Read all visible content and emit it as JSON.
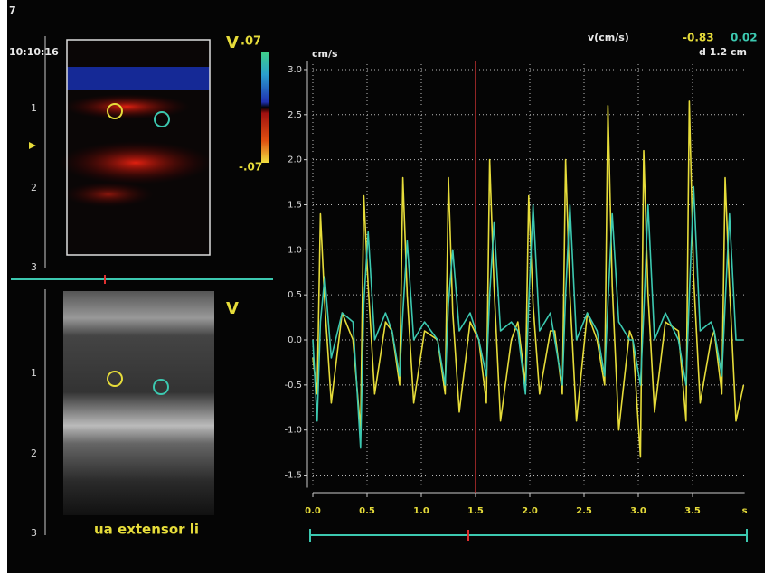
{
  "screen": {
    "frame_number": "7",
    "time": "10:10:16",
    "doppler_label": "V",
    "scale_max": ".07",
    "scale_min": "-.07",
    "bmode_label": "V",
    "caption": "ua extensor li",
    "depth_labels_top": [
      "1",
      "2",
      "3"
    ],
    "depth_labels_bottom": [
      "1",
      "2",
      "3"
    ]
  },
  "readout": {
    "label": "v(cm/s)",
    "value_1": "-0.83",
    "value_2": "0.02",
    "distance": "d 1.2 cm"
  },
  "chart_data": {
    "type": "line",
    "y_label": "cm/s",
    "x_label": "s",
    "x": [
      0.0,
      0.04,
      0.07,
      0.11,
      0.17,
      0.27,
      0.37,
      0.44,
      0.47,
      0.51,
      0.57,
      0.67,
      0.73,
      0.8,
      0.83,
      0.87,
      0.93,
      1.03,
      1.15,
      1.22,
      1.25,
      1.29,
      1.35,
      1.45,
      1.53,
      1.6,
      1.63,
      1.67,
      1.73,
      1.83,
      1.89,
      1.96,
      1.99,
      2.03,
      2.09,
      2.19,
      2.23,
      2.3,
      2.33,
      2.37,
      2.43,
      2.53,
      2.62,
      2.69,
      2.72,
      2.76,
      2.82,
      2.92,
      2.95,
      3.02,
      3.05,
      3.09,
      3.15,
      3.25,
      3.37,
      3.44,
      3.47,
      3.51,
      3.57,
      3.67,
      3.7,
      3.77,
      3.8,
      3.84,
      3.9,
      3.97
    ],
    "series": [
      {
        "color": "#e6dc3a",
        "values": [
          -0.2,
          -0.6,
          1.4,
          0.4,
          -0.7,
          0.3,
          0.0,
          -1.0,
          1.6,
          0.6,
          -0.6,
          0.2,
          0.1,
          -0.5,
          1.8,
          0.5,
          -0.7,
          0.1,
          0.0,
          -0.6,
          1.8,
          0.3,
          -0.8,
          0.2,
          0.0,
          -0.7,
          2.0,
          0.6,
          -0.9,
          0.0,
          0.2,
          -0.5,
          1.6,
          0.4,
          -0.6,
          0.1,
          0.1,
          -0.6,
          2.0,
          0.5,
          -0.9,
          0.3,
          0.0,
          -0.5,
          2.6,
          0.6,
          -1.0,
          0.1,
          0.0,
          -1.3,
          2.1,
          0.5,
          -0.8,
          0.2,
          0.1,
          -0.9,
          2.65,
          0.7,
          -0.7,
          0.0,
          0.1,
          -0.6,
          1.8,
          0.6,
          -0.9,
          -0.5
        ]
      },
      {
        "color": "#3cc8b0",
        "values": [
          0.0,
          -0.9,
          0.2,
          0.7,
          -0.2,
          0.3,
          0.2,
          -1.2,
          0.4,
          1.2,
          0.0,
          0.3,
          0.1,
          -0.4,
          0.3,
          1.1,
          0.0,
          0.2,
          0.0,
          -0.5,
          0.4,
          1.0,
          0.1,
          0.3,
          0.0,
          -0.4,
          0.5,
          1.3,
          0.1,
          0.2,
          0.1,
          -0.6,
          0.4,
          1.5,
          0.1,
          0.3,
          0.0,
          -0.5,
          0.5,
          1.5,
          0.0,
          0.3,
          0.1,
          -0.4,
          0.4,
          1.4,
          0.2,
          0.0,
          0.0,
          -0.5,
          0.3,
          1.5,
          0.0,
          0.3,
          0.0,
          -0.5,
          0.5,
          1.7,
          0.1,
          0.2,
          0.1,
          -0.4,
          0.4,
          1.4,
          0.0,
          0.0
        ]
      }
    ],
    "cursor_x": 1.5,
    "cursor_color": "#c03030",
    "xlim": [
      0,
      3.98
    ],
    "ylim": [
      -1.6,
      3.1
    ],
    "xticks": [
      {
        "value": 0,
        "label": "0.0"
      },
      0.5,
      {
        "value": 1,
        "label": "1.0"
      },
      1.5,
      {
        "value": 2,
        "label": "2.0"
      },
      2.5,
      {
        "value": 3,
        "label": "3.0"
      },
      3.5
    ],
    "yticks": [
      -1.5,
      {
        "value": -1,
        "label": "-1.0"
      },
      -0.5,
      {
        "value": 0,
        "label": "0.0"
      },
      0.5,
      {
        "value": 1,
        "label": "1.0"
      },
      1.5,
      {
        "value": 2,
        "label": "2.0"
      },
      2.5,
      {
        "value": 3,
        "label": "3.0"
      }
    ],
    "grid": true
  }
}
